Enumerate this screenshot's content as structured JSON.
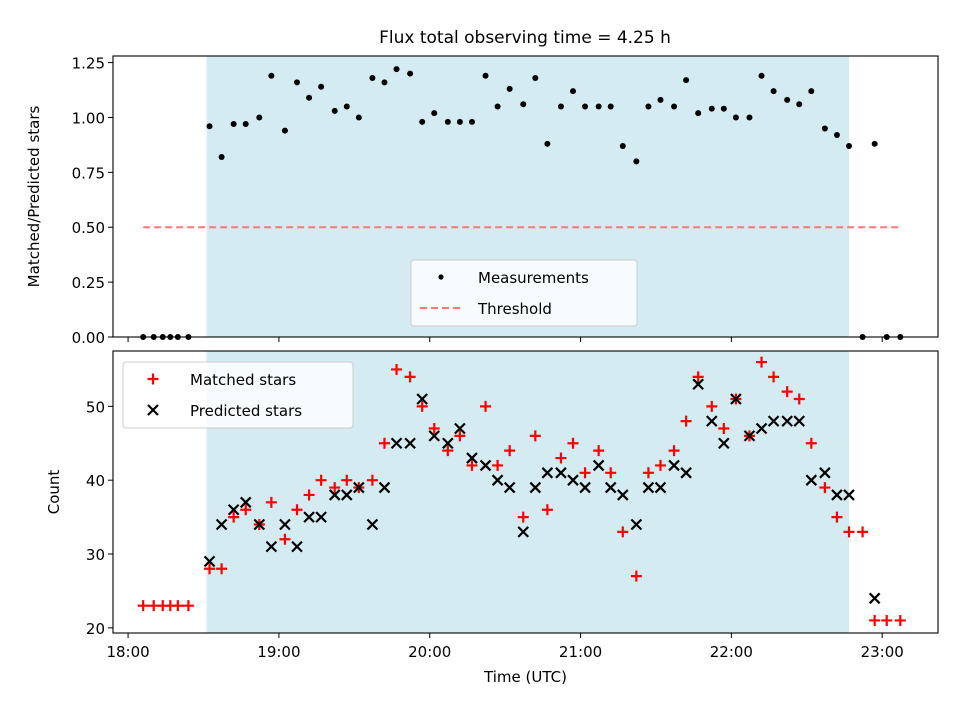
{
  "figure": {
    "title": "Flux total observing time = 4.25 h"
  },
  "chart_data": [
    {
      "type": "scatter",
      "panel": "top",
      "title": "Flux total observing time = 4.25 h",
      "xlabel": "",
      "ylabel": "Matched/Predicted stars",
      "x_unit": "hours UTC",
      "xlim": [
        17.9,
        23.37
      ],
      "ylim": [
        0.0,
        1.28
      ],
      "yticks": [
        0.0,
        0.25,
        0.5,
        0.75,
        1.0,
        1.25
      ],
      "ytick_labels": [
        "0.00",
        "0.25",
        "0.50",
        "0.75",
        "1.00",
        "1.25"
      ],
      "grid": false,
      "legend_placement": "lower-center",
      "shaded_span": {
        "x": [
          18.52,
          22.78
        ],
        "color": "#add8e6"
      },
      "threshold": {
        "name": "Threshold",
        "y": 0.5,
        "x": [
          18.1,
          23.12
        ],
        "color": "#ff7777",
        "style": "dashed"
      },
      "series": [
        {
          "name": "Measurements",
          "color": "#000000",
          "marker": "dot",
          "x": [
            18.1,
            18.17,
            18.23,
            18.28,
            18.33,
            18.4,
            18.54,
            18.62,
            18.7,
            18.78,
            18.87,
            18.95,
            19.04,
            19.12,
            19.2,
            19.28,
            19.37,
            19.45,
            19.53,
            19.62,
            19.7,
            19.78,
            19.87,
            19.95,
            20.03,
            20.12,
            20.2,
            20.28,
            20.37,
            20.45,
            20.53,
            20.62,
            20.7,
            20.78,
            20.87,
            20.95,
            21.03,
            21.12,
            21.2,
            21.28,
            21.37,
            21.45,
            21.53,
            21.62,
            21.7,
            21.78,
            21.87,
            21.95,
            22.03,
            22.12,
            22.2,
            22.28,
            22.37,
            22.45,
            22.53,
            22.62,
            22.7,
            22.78,
            22.87,
            22.95,
            23.03,
            23.12
          ],
          "y": [
            0.0,
            0.0,
            0.0,
            0.0,
            0.0,
            0.0,
            0.96,
            0.82,
            0.97,
            0.97,
            1.0,
            1.19,
            0.94,
            1.16,
            1.09,
            1.14,
            1.03,
            1.05,
            1.0,
            1.18,
            1.16,
            1.22,
            1.2,
            0.98,
            1.02,
            0.98,
            0.98,
            0.98,
            1.19,
            1.05,
            1.13,
            1.06,
            1.18,
            0.88,
            1.05,
            1.12,
            1.05,
            1.05,
            1.05,
            0.87,
            0.8,
            1.05,
            1.08,
            1.05,
            1.17,
            1.02,
            1.04,
            1.04,
            1.0,
            1.0,
            1.19,
            1.12,
            1.08,
            1.06,
            1.12,
            0.95,
            0.92,
            0.87,
            0.0,
            0.88,
            0.0,
            0.0
          ]
        }
      ]
    },
    {
      "type": "scatter",
      "panel": "bottom",
      "title": "",
      "xlabel": "Time (UTC)",
      "ylabel": "Count",
      "x_unit": "hours UTC",
      "xlim": [
        17.9,
        23.37
      ],
      "ylim": [
        19.3,
        57.5
      ],
      "xticks": [
        18,
        19,
        20,
        21,
        22,
        23
      ],
      "xtick_labels": [
        "18:00",
        "19:00",
        "20:00",
        "21:00",
        "22:00",
        "23:00"
      ],
      "yticks": [
        20,
        30,
        40,
        50
      ],
      "ytick_labels": [
        "20",
        "30",
        "40",
        "50"
      ],
      "grid": false,
      "legend_placement": "upper-left",
      "shaded_span": {
        "x": [
          18.52,
          22.78
        ],
        "color": "#add8e6"
      },
      "series": [
        {
          "name": "Matched stars",
          "color": "#ff0000",
          "marker": "plus",
          "x": [
            18.1,
            18.17,
            18.23,
            18.28,
            18.33,
            18.4,
            18.54,
            18.62,
            18.7,
            18.78,
            18.87,
            18.95,
            19.04,
            19.12,
            19.2,
            19.28,
            19.37,
            19.45,
            19.53,
            19.62,
            19.7,
            19.78,
            19.87,
            19.95,
            20.03,
            20.12,
            20.2,
            20.28,
            20.37,
            20.45,
            20.53,
            20.62,
            20.7,
            20.78,
            20.87,
            20.95,
            21.03,
            21.12,
            21.2,
            21.28,
            21.37,
            21.45,
            21.53,
            21.62,
            21.7,
            21.78,
            21.87,
            21.95,
            22.03,
            22.12,
            22.2,
            22.28,
            22.37,
            22.45,
            22.53,
            22.62,
            22.7,
            22.78,
            22.87,
            22.95,
            23.03,
            23.12
          ],
          "y": [
            23,
            23,
            23,
            23,
            23,
            23,
            28,
            28,
            35,
            36,
            34,
            37,
            32,
            36,
            38,
            40,
            39,
            40,
            39,
            40,
            45,
            55,
            54,
            50,
            47,
            44,
            46,
            42,
            50,
            42,
            44,
            35,
            46,
            36,
            43,
            45,
            41,
            44,
            41,
            33,
            27,
            41,
            42,
            44,
            48,
            54,
            50,
            47,
            51,
            46,
            56,
            54,
            52,
            51,
            45,
            39,
            35,
            33,
            33,
            21,
            21,
            21
          ]
        },
        {
          "name": "Predicted stars",
          "color": "#000000",
          "marker": "x",
          "x": [
            18.54,
            18.62,
            18.7,
            18.78,
            18.87,
            18.95,
            19.04,
            19.12,
            19.2,
            19.28,
            19.37,
            19.45,
            19.53,
            19.62,
            19.7,
            19.78,
            19.87,
            19.95,
            20.03,
            20.12,
            20.2,
            20.28,
            20.37,
            20.45,
            20.53,
            20.62,
            20.7,
            20.78,
            20.87,
            20.95,
            21.03,
            21.12,
            21.2,
            21.28,
            21.37,
            21.45,
            21.53,
            21.62,
            21.7,
            21.78,
            21.87,
            21.95,
            22.03,
            22.12,
            22.2,
            22.28,
            22.37,
            22.45,
            22.53,
            22.62,
            22.7,
            22.78,
            22.95
          ],
          "y": [
            29,
            34,
            36,
            37,
            34,
            31,
            34,
            31,
            35,
            35,
            38,
            38,
            39,
            34,
            39,
            45,
            45,
            51,
            46,
            45,
            47,
            43,
            42,
            40,
            39,
            33,
            39,
            41,
            41,
            40,
            39,
            42,
            39,
            38,
            34,
            39,
            39,
            42,
            41,
            53,
            48,
            45,
            51,
            46,
            47,
            48,
            48,
            48,
            40,
            41,
            38,
            38,
            24
          ]
        }
      ]
    }
  ]
}
